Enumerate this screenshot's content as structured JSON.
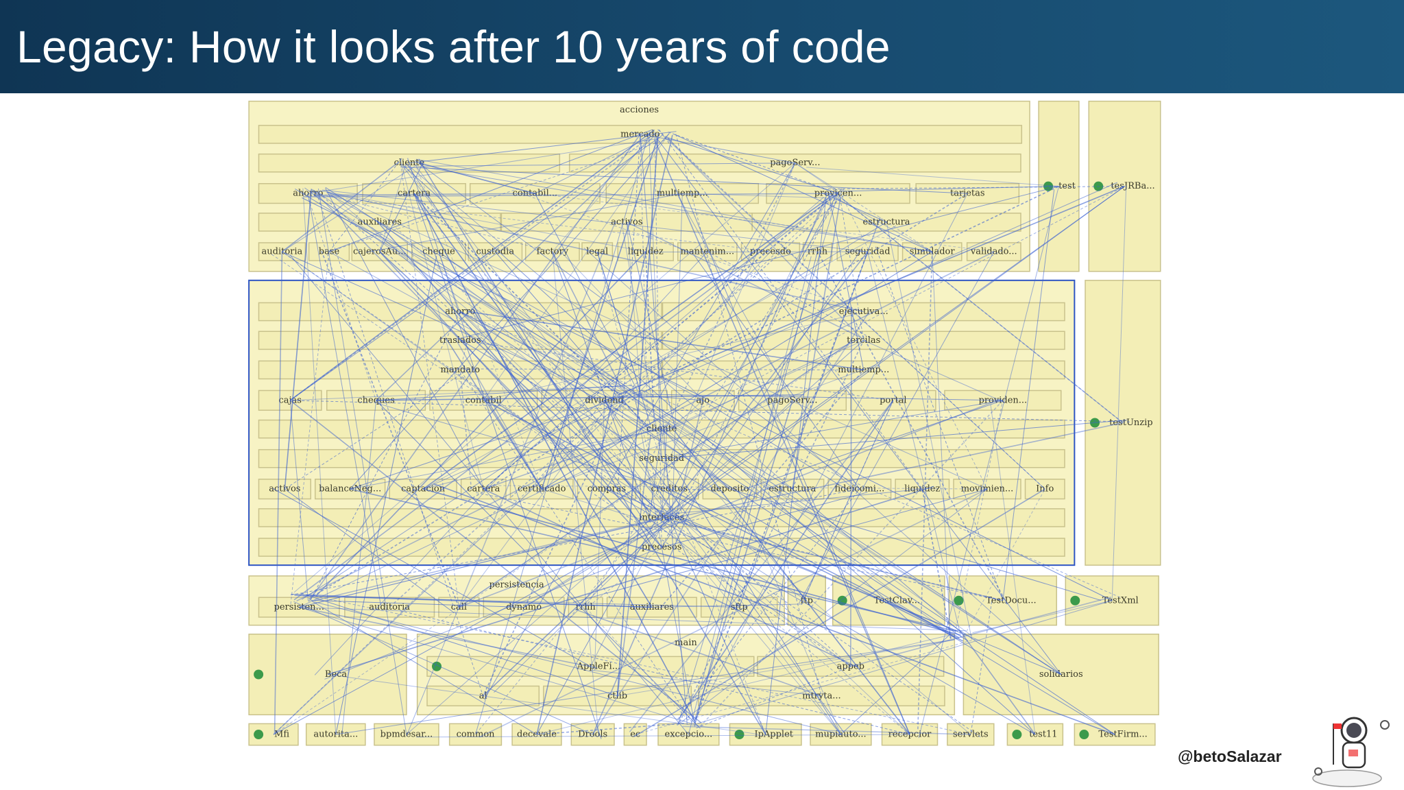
{
  "header": {
    "title": "Legacy: How it looks after 10 years of code"
  },
  "diagram": {
    "nodes": [
      {
        "label": "acciones"
      },
      {
        "label": "mercado"
      },
      {
        "label": "cliente"
      },
      {
        "label": "pagoServ..."
      },
      {
        "label": "ahorro"
      },
      {
        "label": "cartera"
      },
      {
        "label": "contabil..."
      },
      {
        "label": "multiemp..."
      },
      {
        "label": "provicen..."
      },
      {
        "label": "tarjetas"
      },
      {
        "label": "auxiliares"
      },
      {
        "label": "activos"
      },
      {
        "label": "estructura"
      },
      {
        "label": "auditoria"
      },
      {
        "label": "base"
      },
      {
        "label": "cajerosAu..."
      },
      {
        "label": "cheque"
      },
      {
        "label": "custodia"
      },
      {
        "label": "factory"
      },
      {
        "label": "legal"
      },
      {
        "label": "liquidez"
      },
      {
        "label": "mantenim..."
      },
      {
        "label": "precesdo"
      },
      {
        "label": "rrhh"
      },
      {
        "label": "seguridad"
      },
      {
        "label": "simulador"
      },
      {
        "label": "validado..."
      },
      {
        "label": "test"
      },
      {
        "label": "tesJRBa..."
      },
      {
        "label": "ahorro"
      },
      {
        "label": "ejecutiva..."
      },
      {
        "label": "traslados"
      },
      {
        "label": "tercilas"
      },
      {
        "label": "mandato"
      },
      {
        "label": "multiemp..."
      },
      {
        "label": "cajas"
      },
      {
        "label": "cheques"
      },
      {
        "label": "contabil"
      },
      {
        "label": "dividend"
      },
      {
        "label": "ajo"
      },
      {
        "label": "pagoServ..."
      },
      {
        "label": "portal"
      },
      {
        "label": "providen..."
      },
      {
        "label": "cliente"
      },
      {
        "label": "seguridad"
      },
      {
        "label": "activos"
      },
      {
        "label": "balanceNeg..."
      },
      {
        "label": "captacion"
      },
      {
        "label": "cartera"
      },
      {
        "label": "certificado"
      },
      {
        "label": "compras"
      },
      {
        "label": "creditos"
      },
      {
        "label": "deposito"
      },
      {
        "label": "estructura"
      },
      {
        "label": "fideicomi..."
      },
      {
        "label": "liquidez"
      },
      {
        "label": "movimien..."
      },
      {
        "label": "Info"
      },
      {
        "label": "interfaces"
      },
      {
        "label": "precesos"
      },
      {
        "label": "testUnzip"
      },
      {
        "label": "persistencia"
      },
      {
        "label": "persisten..."
      },
      {
        "label": "auditoria"
      },
      {
        "label": "call"
      },
      {
        "label": "dynamo"
      },
      {
        "label": "rrhh"
      },
      {
        "label": "auxiliares"
      },
      {
        "label": "sftp"
      },
      {
        "label": "ftp"
      },
      {
        "label": "TestClav..."
      },
      {
        "label": "TestDocu..."
      },
      {
        "label": "TestXml"
      },
      {
        "label": "Beca"
      },
      {
        "label": "main"
      },
      {
        "label": "AppleFi..."
      },
      {
        "label": "appeb"
      },
      {
        "label": "al"
      },
      {
        "label": "ctlib"
      },
      {
        "label": "mtryta..."
      },
      {
        "label": "solidarios"
      },
      {
        "label": "Mfi"
      },
      {
        "label": "autorita..."
      },
      {
        "label": "bpmdesar..."
      },
      {
        "label": "common"
      },
      {
        "label": "decevale"
      },
      {
        "label": "Drools"
      },
      {
        "label": "ec"
      },
      {
        "label": "excepcio..."
      },
      {
        "label": "IpApplet"
      },
      {
        "label": "mupiauto..."
      },
      {
        "label": "recepcior"
      },
      {
        "label": "servlets"
      },
      {
        "label": "test11"
      },
      {
        "label": "TestFirm..."
      }
    ]
  },
  "footer": {
    "handle": "@betoSalazar"
  }
}
